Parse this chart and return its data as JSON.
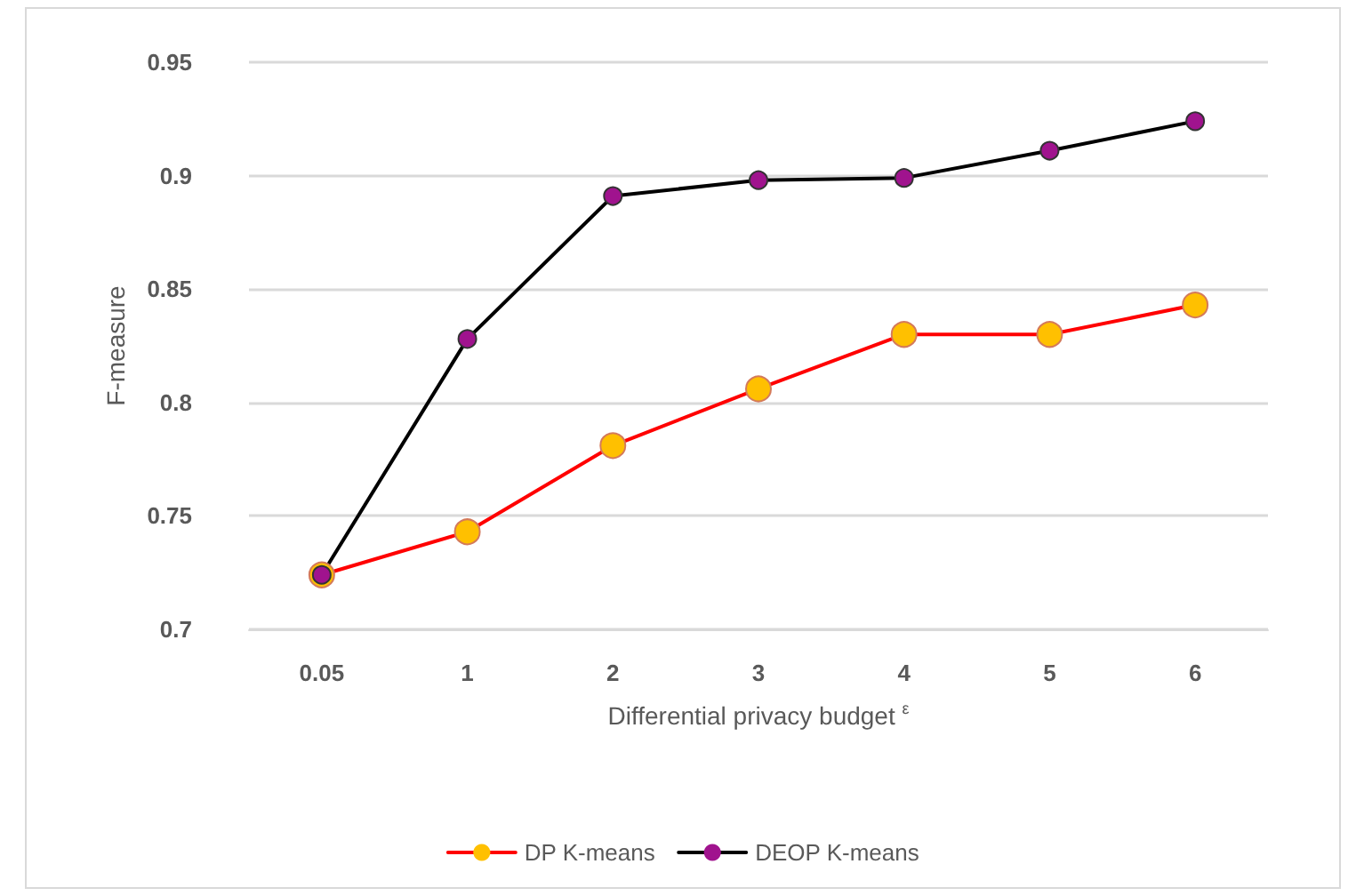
{
  "chart_data": {
    "type": "line",
    "xlabel": "Differential privacy budget $^{ε}$",
    "ylabel": "F-measure",
    "categories": [
      "0.05",
      "1",
      "2",
      "3",
      "4",
      "5",
      "6"
    ],
    "series": [
      {
        "name": "DP K-means",
        "color": "#ff0000",
        "colors": [
          "#ffc000",
          "#ffc000",
          "#ffc000",
          "#ffc000",
          "#ffc000",
          "#ffc000",
          "#ffc000"
        ],
        "values": [
          0.724,
          0.743,
          0.781,
          0.806,
          0.83,
          0.83,
          0.843
        ]
      },
      {
        "name": "DEOP K-means",
        "color": "#000000",
        "colors": [
          "#a0138e",
          "#a0138e",
          "#a0138e",
          "#a0138e",
          "#a0138e",
          "#a0138e",
          "#a0138e"
        ],
        "values": [
          0.724,
          0.828,
          0.891,
          0.898,
          0.899,
          0.911,
          0.924
        ]
      }
    ],
    "ylim": [
      0.7,
      0.95
    ],
    "yticks": [
      0.7,
      0.75,
      0.8,
      0.85,
      0.9,
      0.95
    ],
    "grid": "y",
    "legend": "bottom",
    "marker": "circle",
    "line_style": "solid"
  }
}
